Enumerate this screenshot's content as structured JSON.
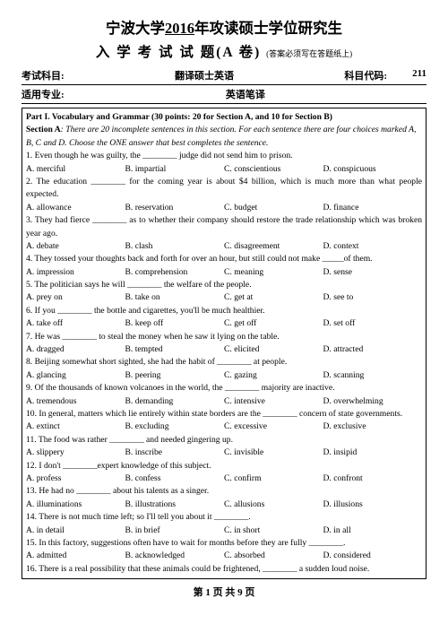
{
  "header": {
    "university": "宁波大学",
    "year": "2016",
    "title_suffix": "年攻读硕士学位研究生",
    "subtitle": "入 学 考 试 试 题(A 卷)",
    "subtitle_note": "(答案必须写在答题纸上)",
    "meta": {
      "subject_label": "考试科目:",
      "subject_value": "翻译硕士英语",
      "code_label": "科目代码:",
      "code_value": "211",
      "major_label": "适用专业:",
      "major_value": "英语笔译"
    }
  },
  "part_title": "Part I.   Vocabulary and Grammar (30 points: 20 for Section A, and 10 for Section B)",
  "section_a_label": "Section A",
  "section_a_instr": ": There are 20 incomplete sentences in this section. For each sentence there are four choices marked A, B, C and D. Choose the ONE answer that best completes the sentence.",
  "questions": [
    {
      "n": "1.",
      "text": "Even though he was guilty, the ________ judge did not send him to prison.",
      "choices": [
        "A. merciful",
        "B. impartial",
        "C. conscientious",
        "D. conspicuous"
      ]
    },
    {
      "n": "2.",
      "text": "The education ________ for the coming year is about $4 billion, which is much more than what people expected.",
      "choices": [
        "A. allowance",
        "B. reservation",
        "C. budget",
        "D. finance"
      ]
    },
    {
      "n": "3.",
      "text": "They had fierce ________ as to whether their company should restore the trade relationship which was broken year ago.",
      "choices": [
        "A. debate",
        "B. clash",
        "C. disagreement",
        "D. context"
      ]
    },
    {
      "n": "4.",
      "text": "They tossed your thoughts back and forth for over an hour, but still could not make _____of them.",
      "choices": [
        "A. impression",
        "B. comprehension",
        "C. meaning",
        "D. sense"
      ]
    },
    {
      "n": "5.",
      "text": "The politician says he will ________ the welfare of the people.",
      "choices": [
        "A. prey on",
        "B. take on",
        "C. get at",
        "D. see to"
      ]
    },
    {
      "n": "6.",
      "text": "If you ________ the bottle and cigarettes, you'll be much healthier.",
      "choices": [
        "A. take off",
        "B. keep off",
        "C. get off",
        "D. set off"
      ]
    },
    {
      "n": "7.",
      "text": "He was ________ to steal the money when he saw it lying on the table.",
      "choices": [
        "A. dragged",
        "B. tempted",
        "C. elicited",
        "D. attracted"
      ]
    },
    {
      "n": "8.",
      "text": "Beijing somewhat short sighted, she had the habit of ________ at people.",
      "choices": [
        "A. glancing",
        "B. peering",
        "C. gazing",
        "D. scanning"
      ]
    },
    {
      "n": "9.",
      "text": "Of the thousands of known volcanoes in the world, the ________ majority are inactive.",
      "choices": [
        "A. tremendous",
        "B. demanding",
        "C. intensive",
        "D. overwhelming"
      ]
    },
    {
      "n": "10.",
      "text": "In general, matters which lie entirely within state borders are the ________ concern of state governments.",
      "choices": [
        "A. extinct",
        "B. excluding",
        "C. excessive",
        "D. exclusive"
      ]
    },
    {
      "n": "11.",
      "text": "The food was rather ________ and needed gingering up.",
      "choices": [
        "A. slippery",
        "B. inscribe",
        "C. invisible",
        "D. insipid"
      ]
    },
    {
      "n": "12.",
      "text": "I don't ________expert knowledge of this subject.",
      "choices": [
        "A. profess",
        "B. confess",
        "C. confirm",
        "D. confront"
      ]
    },
    {
      "n": "13.",
      "text": "He had no ________ about his talents as a singer.",
      "choices": [
        "A. illuminations",
        "B. illustrations",
        "C. allusions",
        "D. illusions"
      ]
    },
    {
      "n": "14.",
      "text": "There is not much time left; so I'll tell you about it ________.",
      "choices": [
        "A. in detail",
        "B. in brief",
        "C. in short",
        "D. in all"
      ]
    },
    {
      "n": "15.",
      "text": "In this factory, suggestions often have to wait for months before they are fully ________.",
      "choices": [
        "A. admitted",
        "B. acknowledged",
        "C. absorbed",
        "D. considered"
      ]
    },
    {
      "n": "16.",
      "text": "There is a real possibility that these animals could be frightened, ________ a sudden loud noise.",
      "choices": null
    }
  ],
  "footer": {
    "page": "第 1 页 共 9 页"
  }
}
